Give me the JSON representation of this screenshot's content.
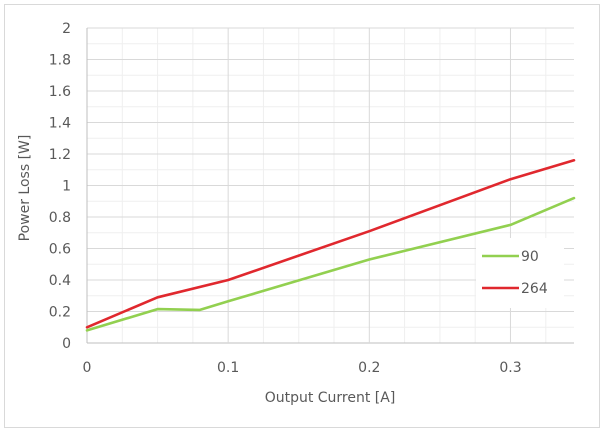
{
  "chart_data": {
    "type": "line",
    "title": "",
    "xlabel": "Output Current [A]",
    "ylabel": "Power Loss [W]",
    "xlim": [
      0,
      0.345
    ],
    "ylim": [
      0,
      2
    ],
    "x_ticks": [
      0,
      0.1,
      0.2,
      0.3
    ],
    "x_tick_labels": [
      "0",
      "0.1",
      "0.2",
      "0.3"
    ],
    "y_ticks": [
      0,
      0.2,
      0.4,
      0.6,
      0.8,
      1,
      1.2,
      1.4,
      1.6,
      1.8,
      2
    ],
    "y_tick_labels": [
      "0",
      "0.2",
      "0.4",
      "0.6",
      "0.8",
      "1",
      "1.2",
      "1.4",
      "1.6",
      "1.8",
      "2"
    ],
    "grid": true,
    "legend_position": "right",
    "series": [
      {
        "name": "90",
        "color": "#92d050",
        "points": [
          [
            0,
            0.08
          ],
          [
            0.05,
            0.215
          ],
          [
            0.08,
            0.21
          ],
          [
            0.1,
            0.265
          ],
          [
            0.2,
            0.53
          ],
          [
            0.3,
            0.75
          ],
          [
            0.345,
            0.92
          ]
        ]
      },
      {
        "name": "264",
        "color": "#e0282e",
        "points": [
          [
            0,
            0.1
          ],
          [
            0.05,
            0.29
          ],
          [
            0.1,
            0.4
          ],
          [
            0.2,
            0.71
          ],
          [
            0.3,
            1.04
          ],
          [
            0.345,
            1.16
          ]
        ]
      }
    ]
  }
}
